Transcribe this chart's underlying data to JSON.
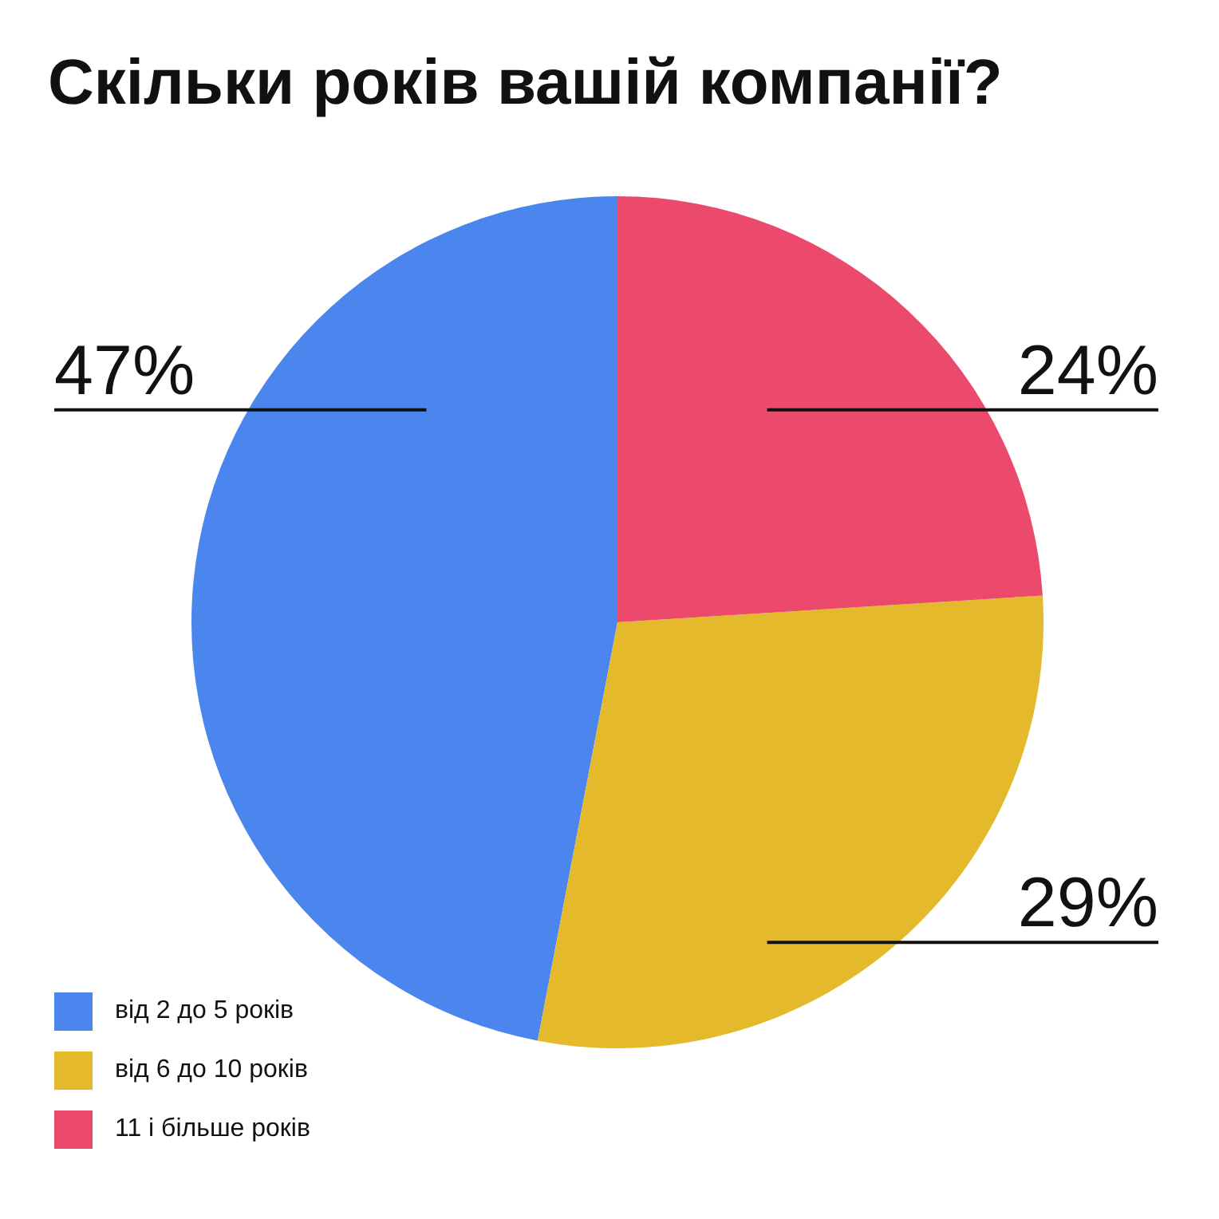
{
  "chart_data": {
    "type": "pie",
    "title": "Скільки років вашій компанії?",
    "categories": [
      "від 2 до 5 років",
      "від 6 до 10 років",
      "11 і більше років"
    ],
    "values": [
      47,
      29,
      24
    ],
    "colors": [
      "#4a86ee",
      "#e4b92c",
      "#ec4a6c"
    ],
    "value_labels": [
      "47%",
      "29%",
      "24%"
    ],
    "legend": "bottom left"
  }
}
